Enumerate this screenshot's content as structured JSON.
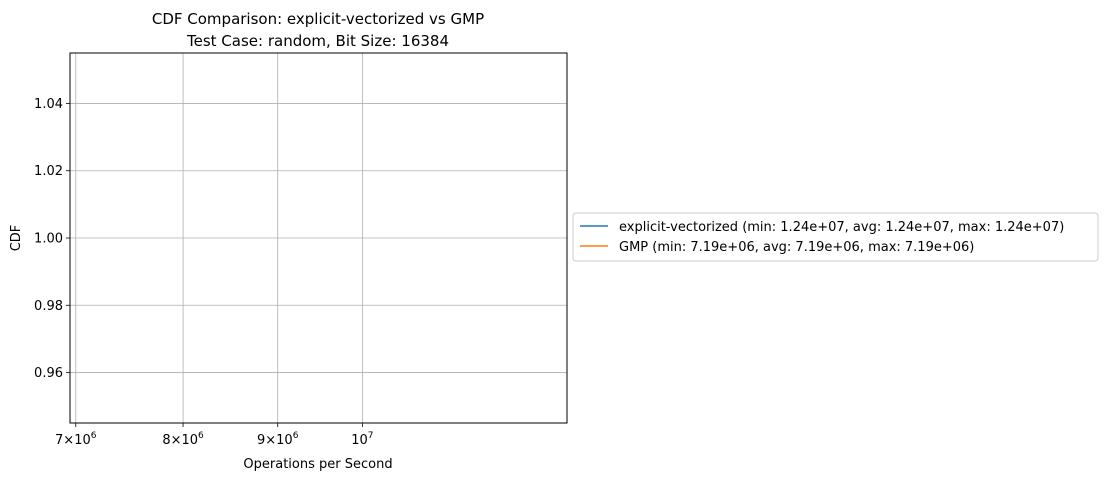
{
  "chart_data": {
    "type": "line",
    "title": "CDF Comparison: explicit-vectorized vs GMP",
    "subtitle": "Test Case: random, Bit Size: 16384",
    "xlabel": "Operations per Second",
    "ylabel": "CDF",
    "xscale": "log",
    "xlim": [
      6950000,
      12900000
    ],
    "ylim": [
      0.945,
      1.055
    ],
    "grid": true,
    "legend_position": "outside-right",
    "x_ticks": [
      {
        "value": 7000000,
        "mantissa": "7",
        "base": "10",
        "exp": "6"
      },
      {
        "value": 8000000,
        "mantissa": "8",
        "base": "10",
        "exp": "6"
      },
      {
        "value": 9000000,
        "mantissa": "9",
        "base": "10",
        "exp": "6"
      },
      {
        "value": 10000000,
        "mantissa": "",
        "base": "10",
        "exp": "7"
      }
    ],
    "y_ticks": [
      {
        "value": 0.96,
        "label": "0.96"
      },
      {
        "value": 0.98,
        "label": "0.98"
      },
      {
        "value": 1.0,
        "label": "1.00"
      },
      {
        "value": 1.02,
        "label": "1.02"
      },
      {
        "value": 1.04,
        "label": "1.04"
      }
    ],
    "series": [
      {
        "label": "explicit-vectorized (min: 1.24e+07, avg: 1.24e+07, max: 1.24e+07)",
        "color": "#1f77b4",
        "x": [
          12400000
        ],
        "y": [
          1.0
        ]
      },
      {
        "label": "GMP (min: 7.19e+06, avg: 7.19e+06, max: 7.19e+06)",
        "color": "#ff7f0e",
        "x": [
          7190000
        ],
        "y": [
          1.0
        ]
      }
    ]
  }
}
